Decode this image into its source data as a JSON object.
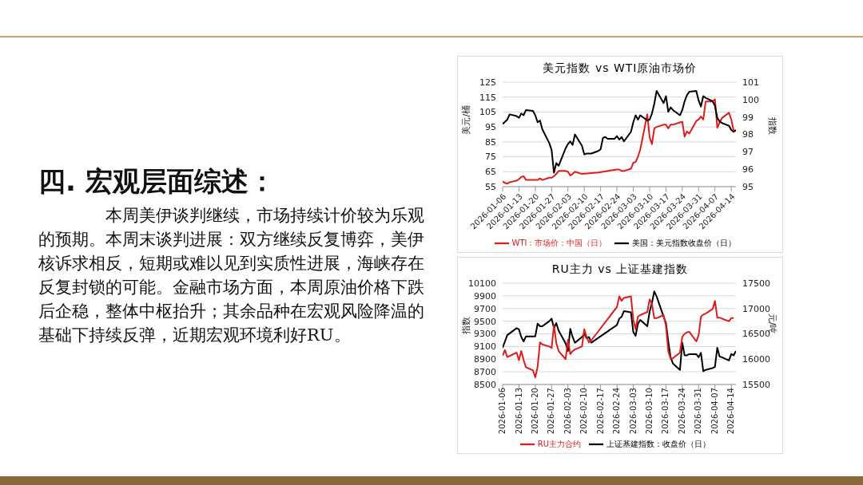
{
  "chart_data": [
    {
      "type": "other",
      "title": "四. 宏观层面综述：",
      "annotations": [
        "本周美伊谈判继续，市场持续计价较为乐观的预期。本周末谈判进展：双方继续反复博弈，美伊核诉求相反，短期或难以见到实质性进展，海峡存在反复封锁的可能。金融市场方面，本周原油价格下跌后企稳，整体中枢抬升；其余品种在宏观风险降温的基础下持续反弹，近期宏观环境利好RU。"
      ]
    },
    {
      "type": "line",
      "title": "美元指数 vs WTI原油市场价",
      "ylabel": "美元/桶",
      "y2label": "指数",
      "xlim": [
        "2026-01-06",
        "2026-04-16"
      ],
      "xticks": [
        "2026-01-06",
        "2026-01-13",
        "2026-01-20",
        "2026-01-27",
        "2026-02-03",
        "2026-02-10",
        "2026-02-17",
        "2026-02-24",
        "2026-03-03",
        "2026-03-10",
        "2026-03-17",
        "2026-03-24",
        "2026-03-31",
        "2026-04-07",
        "2026-04-14"
      ],
      "ylim": [
        55,
        125
      ],
      "yticks": [
        55,
        65,
        75,
        85,
        95,
        105,
        115,
        125
      ],
      "y2lim": [
        95,
        101
      ],
      "y2ticks": [
        95,
        96,
        97,
        98,
        99,
        100,
        101
      ],
      "grid": "y",
      "legend": "bottom",
      "series": [
        {
          "name": "WTI：市场价：中国（日）",
          "color": "#e01b1b",
          "x": [
            "2026-01-06",
            "2026-01-07",
            "2026-01-08",
            "2026-01-09",
            "2026-01-12",
            "2026-01-13",
            "2026-01-14",
            "2026-01-15",
            "2026-01-16",
            "2026-01-19",
            "2026-01-20",
            "2026-01-21",
            "2026-01-22",
            "2026-01-23",
            "2026-01-26",
            "2026-01-27",
            "2026-01-28",
            "2026-01-29",
            "2026-01-30",
            "2026-02-02",
            "2026-02-03",
            "2026-02-04",
            "2026-02-05",
            "2026-02-06",
            "2026-02-09",
            "2026-02-16",
            "2026-02-24",
            "2026-02-25",
            "2026-02-26",
            "2026-02-27",
            "2026-03-02",
            "2026-03-03",
            "2026-03-04",
            "2026-03-05",
            "2026-03-06",
            "2026-03-09",
            "2026-03-10",
            "2026-03-11",
            "2026-03-12",
            "2026-03-13",
            "2026-03-16",
            "2026-03-17",
            "2026-03-18",
            "2026-03-19",
            "2026-03-20",
            "2026-03-23",
            "2026-03-24",
            "2026-03-25",
            "2026-03-26",
            "2026-03-27",
            "2026-03-30",
            "2026-03-31",
            "2026-04-01",
            "2026-04-02",
            "2026-04-03",
            "2026-04-06",
            "2026-04-07",
            "2026-04-08",
            "2026-04-09",
            "2026-04-10",
            "2026-04-13",
            "2026-04-14",
            "2026-04-15",
            "2026-04-16"
          ],
          "values": [
            58.5,
            57.5,
            57,
            58,
            59,
            60,
            61.5,
            62,
            59.5,
            59.5,
            59.5,
            59.5,
            60.5,
            59.5,
            61,
            61,
            62,
            63.5,
            65.5,
            65.5,
            65,
            62.5,
            63.5,
            65,
            63.5,
            64.5,
            66.5,
            66.5,
            65.5,
            65.5,
            67,
            71,
            71.5,
            75,
            80,
            103.5,
            88,
            83.5,
            94,
            95,
            96.5,
            96.5,
            94,
            96.5,
            96.5,
            98,
            98.5,
            88.5,
            92,
            90.5,
            99,
            100,
            102,
            100,
            112,
            112,
            113.5,
            94.5,
            98,
            101,
            104.5,
            100,
            92.5,
            92.5
          ]
        },
        {
          "name": "美国：美元指数收盘价（日）",
          "color": "#000000",
          "axis": "y2",
          "x": [
            "2026-01-06",
            "2026-01-08",
            "2026-01-09",
            "2026-01-12",
            "2026-01-13",
            "2026-01-14",
            "2026-01-15",
            "2026-01-16",
            "2026-01-19",
            "2026-01-20",
            "2026-01-21",
            "2026-01-22",
            "2026-01-23",
            "2026-01-26",
            "2026-01-27",
            "2026-01-28",
            "2026-01-29",
            "2026-01-30",
            "2026-02-02",
            "2026-02-03",
            "2026-02-04",
            "2026-02-05",
            "2026-02-06",
            "2026-02-09",
            "2026-02-10",
            "2026-02-11",
            "2026-02-12",
            "2026-02-13",
            "2026-02-16",
            "2026-02-17",
            "2026-02-18",
            "2026-02-19",
            "2026-02-20",
            "2026-02-23",
            "2026-02-24",
            "2026-02-25",
            "2026-02-26",
            "2026-02-27",
            "2026-03-02",
            "2026-03-03",
            "2026-03-04",
            "2026-03-05",
            "2026-03-06",
            "2026-03-09",
            "2026-03-10",
            "2026-03-11",
            "2026-03-12",
            "2026-03-13",
            "2026-03-16",
            "2026-03-17",
            "2026-03-18",
            "2026-03-19",
            "2026-03-20",
            "2026-03-23",
            "2026-03-24",
            "2026-03-25",
            "2026-03-26",
            "2026-03-27",
            "2026-03-30",
            "2026-03-31",
            "2026-04-01",
            "2026-04-02",
            "2026-04-03",
            "2026-04-06",
            "2026-04-07",
            "2026-04-08",
            "2026-04-09",
            "2026-04-10",
            "2026-04-13",
            "2026-04-14",
            "2026-04-15",
            "2026-04-16"
          ],
          "values": [
            98.6,
            98.85,
            99.15,
            99.05,
            98.95,
            99.2,
            99.1,
            99.4,
            99.35,
            99.1,
            98.7,
            98.8,
            98.3,
            97.5,
            97.1,
            95.8,
            96.35,
            96.2,
            97.2,
            97.45,
            97.6,
            97.4,
            98.0,
            97.35,
            96.85,
            96.9,
            96.9,
            96.9,
            97.05,
            97.15,
            97.8,
            97.85,
            97.75,
            97.75,
            97.9,
            97.7,
            97.85,
            97.6,
            98.15,
            98.7,
            99.1,
            98.85,
            99.1,
            98.8,
            98.85,
            99.2,
            99.75,
            100.5,
            99.8,
            100.2,
            99.3,
            99.55,
            99.4,
            99.1,
            99.4,
            99.9,
            100.25,
            100.45,
            100.5,
            99.95,
            99.6,
            100.2,
            100.1,
            99.9,
            99.65,
            98.95,
            98.75,
            98.65,
            98.5,
            98.25,
            98.15,
            98.25
          ]
        }
      ]
    },
    {
      "type": "line",
      "title": "RU主力 vs 上证基建指数",
      "ylabel": "指数",
      "y2label": "元/吨",
      "xlim": [
        "2026-01-06",
        "2026-04-16"
      ],
      "xticks": [
        "2026-01-06",
        "2026-01-13",
        "2026-01-20",
        "2026-01-27",
        "2026-02-03",
        "2026-02-10",
        "2026-02-17",
        "2026-02-24",
        "2026-03-03",
        "2026-03-10",
        "2026-03-17",
        "2026-03-24",
        "2026-03-31",
        "2026-04-07",
        "2026-04-14"
      ],
      "ylim": [
        8500,
        10100
      ],
      "yticks": [
        8500,
        8700,
        8900,
        9100,
        9300,
        9500,
        9700,
        9900,
        10100
      ],
      "y2lim": [
        15500,
        17500
      ],
      "y2ticks": [
        15500,
        16000,
        16500,
        17000,
        17500
      ],
      "grid": "y",
      "legend": "bottom",
      "series": [
        {
          "name": "上证基建指数：收盘价（日）",
          "color": "#000000",
          "x": [
            "2026-01-06",
            "2026-01-08",
            "2026-01-12",
            "2026-01-13",
            "2026-01-14",
            "2026-01-15",
            "2026-01-16",
            "2026-01-19",
            "2026-01-20",
            "2026-01-21",
            "2026-01-22",
            "2026-01-23",
            "2026-01-26",
            "2026-01-27",
            "2026-01-28",
            "2026-01-29",
            "2026-01-30",
            "2026-02-02",
            "2026-02-03",
            "2026-02-04",
            "2026-02-05",
            "2026-02-06",
            "2026-02-09",
            "2026-02-10",
            "2026-02-11",
            "2026-02-12",
            "2026-02-13",
            "2026-02-24",
            "2026-02-25",
            "2026-02-26",
            "2026-02-27",
            "2026-03-02",
            "2026-03-03",
            "2026-03-04",
            "2026-03-05",
            "2026-03-06",
            "2026-03-09",
            "2026-03-10",
            "2026-03-11",
            "2026-03-12",
            "2026-03-13",
            "2026-03-16",
            "2026-03-17",
            "2026-03-18",
            "2026-03-19",
            "2026-03-20",
            "2026-03-23",
            "2026-03-24",
            "2026-03-25",
            "2026-03-26",
            "2026-03-27",
            "2026-03-30",
            "2026-03-31",
            "2026-04-01",
            "2026-04-02",
            "2026-04-03",
            "2026-04-06",
            "2026-04-07",
            "2026-04-08",
            "2026-04-09",
            "2026-04-10",
            "2026-04-13",
            "2026-04-14",
            "2026-04-15",
            "2026-04-16"
          ],
          "values": [
            9080,
            9280,
            9390,
            9370,
            9250,
            9180,
            9260,
            9260,
            9260,
            9460,
            9420,
            9420,
            9500,
            9540,
            9390,
            9470,
            9350,
            9150,
            9030,
            9380,
            9250,
            9160,
            9250,
            9300,
            9230,
            9250,
            9160,
            9440,
            9540,
            9570,
            9660,
            9640,
            9330,
            9270,
            9460,
            9520,
            9420,
            9650,
            9790,
            9970,
            9890,
            9570,
            9470,
            9180,
            8930,
            8830,
            8730,
            9160,
            8960,
            8960,
            8980,
            8980,
            8930,
            9000,
            8710,
            8730,
            8760,
            8780,
            9080,
            8940,
            8930,
            8880,
            8980,
            8960,
            9030
          ]
        },
        {
          "name": "RU主力合约",
          "color": "#e01b1b",
          "axis": "y2",
          "x": [
            "2026-01-06",
            "2026-01-07",
            "2026-01-08",
            "2026-01-12",
            "2026-01-13",
            "2026-01-14",
            "2026-01-15",
            "2026-01-16",
            "2026-01-19",
            "2026-01-20",
            "2026-01-21",
            "2026-01-22",
            "2026-01-23",
            "2026-01-26",
            "2026-01-27",
            "2026-01-28",
            "2026-01-29",
            "2026-01-30",
            "2026-02-02",
            "2026-02-03",
            "2026-02-04",
            "2026-02-05",
            "2026-02-06",
            "2026-02-09",
            "2026-02-10",
            "2026-02-11",
            "2026-02-12",
            "2026-02-13",
            "2026-02-24",
            "2026-02-25",
            "2026-02-26",
            "2026-02-27",
            "2026-03-02",
            "2026-03-03",
            "2026-03-04",
            "2026-03-05",
            "2026-03-06",
            "2026-03-09",
            "2026-03-10",
            "2026-03-11",
            "2026-03-12",
            "2026-03-13",
            "2026-03-16",
            "2026-03-17",
            "2026-03-18",
            "2026-03-19",
            "2026-03-20",
            "2026-03-23",
            "2026-03-24",
            "2026-03-25",
            "2026-03-26",
            "2026-03-27",
            "2026-03-30",
            "2026-03-31",
            "2026-04-01",
            "2026-04-02",
            "2026-04-03",
            "2026-04-06",
            "2026-04-07",
            "2026-04-08",
            "2026-04-09",
            "2026-04-10",
            "2026-04-13",
            "2026-04-14",
            "2026-04-15"
          ],
          "values": [
            16070,
            16180,
            16040,
            16130,
            15980,
            16160,
            15980,
            15840,
            15780,
            15640,
            15850,
            16330,
            16290,
            16250,
            16220,
            16670,
            16320,
            16160,
            16000,
            16380,
            16100,
            16160,
            16190,
            16250,
            16590,
            16440,
            16330,
            16370,
            17030,
            17240,
            17150,
            17210,
            17240,
            16780,
            16590,
            16840,
            16870,
            16930,
            17180,
            17090,
            16810,
            16810,
            16870,
            16660,
            16160,
            16010,
            16020,
            16130,
            16440,
            16500,
            16530,
            16540,
            16350,
            16470,
            16840,
            16880,
            16900,
            16990,
            17150,
            16820,
            16820,
            16800,
            16750,
            16810,
            16810
          ]
        }
      ]
    }
  ]
}
